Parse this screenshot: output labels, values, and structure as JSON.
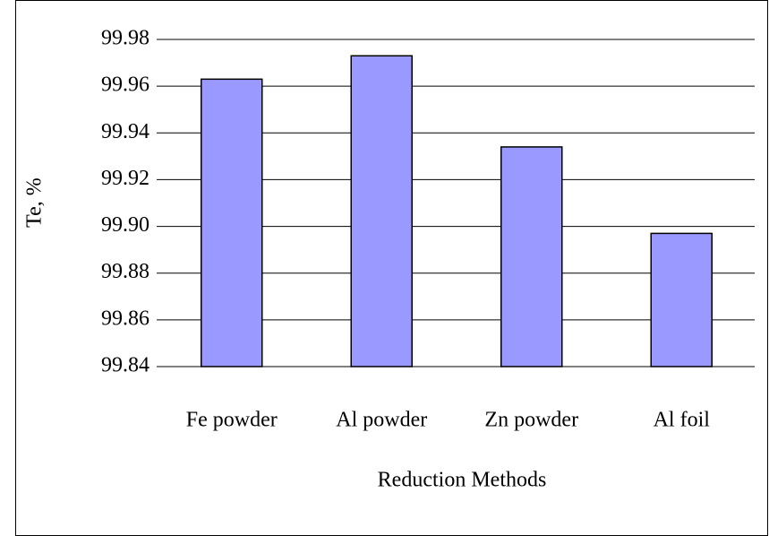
{
  "chart_data": {
    "type": "bar",
    "x_label": "Reduction Methods",
    "y_label": "Te, %",
    "categories": [
      "Fe powder",
      "Al powder",
      "Zn powder",
      "Al foil"
    ],
    "values": [
      99.963,
      99.973,
      99.934,
      99.897
    ],
    "color": "#9999ff",
    "ylim": [
      99.84,
      99.98
    ],
    "yticks": [
      99.84,
      99.86,
      99.88,
      {
        "value": 99.9,
        "label": "99.90"
      },
      99.92,
      99.94,
      99.96,
      99.98
    ],
    "grid": true
  }
}
